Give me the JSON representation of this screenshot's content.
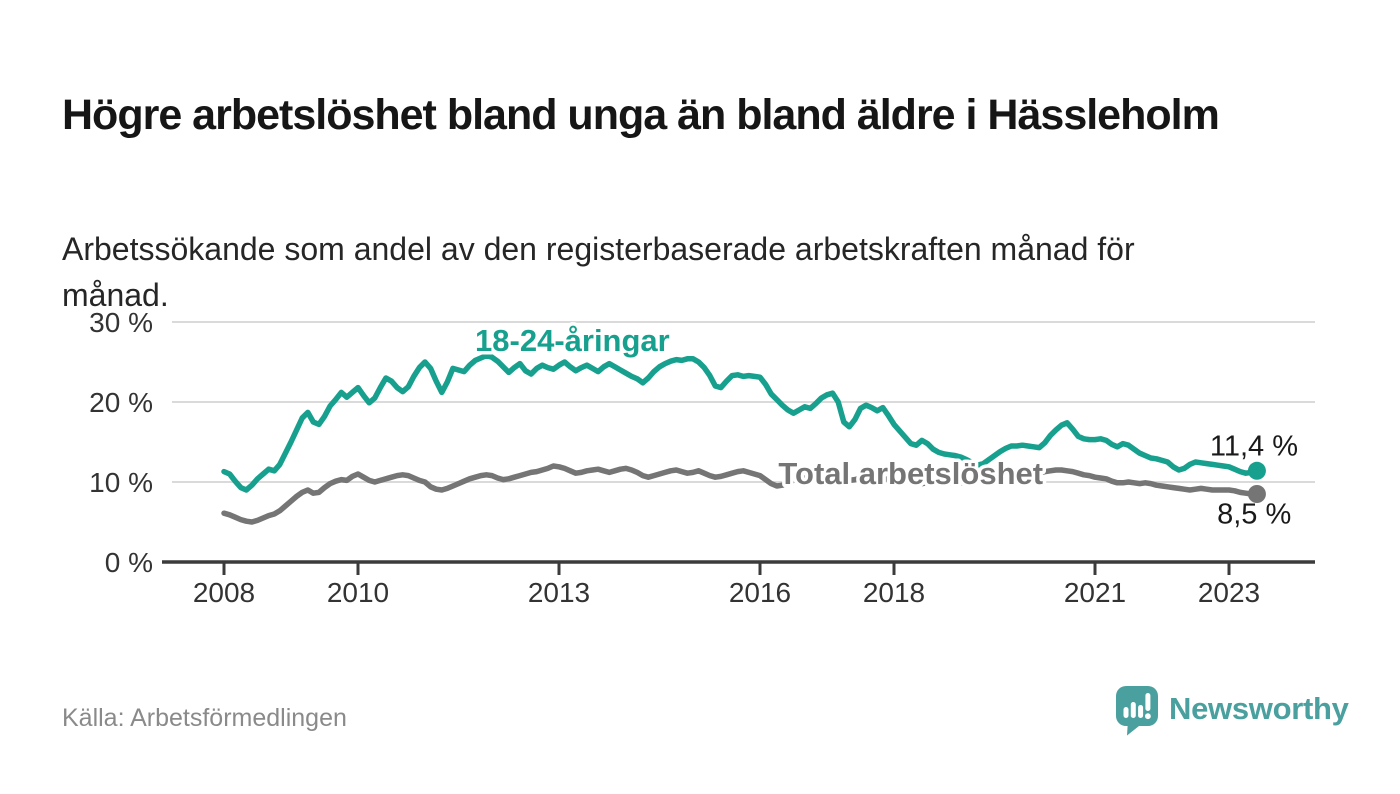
{
  "header": {
    "title": "Högre arbetslöshet bland unga än bland äldre i Hässleholm",
    "subtitle": "Arbetssökande som andel av den registerbaserade arbetskraften månad för månad."
  },
  "chart_data": {
    "type": "line",
    "unit": "%",
    "frequency": "monthly",
    "x_start_year": 2008,
    "x_end": "2023-06",
    "x_axis_ticks": [
      2008,
      2010,
      2013,
      2016,
      2018,
      2021,
      2023
    ],
    "y_axis_ticks": [
      0,
      10,
      20,
      30
    ],
    "y_tick_suffix": " %",
    "ylim": [
      0,
      32
    ],
    "grid": "horizontal-light",
    "legend": "inline-labels-on-lines",
    "series": [
      {
        "id": "young",
        "name": "18-24-åringar",
        "color": "#18a08e",
        "end_label": "11,4 %",
        "label_at": [
          2013.2,
          26.4
        ],
        "end_label_at": [
          2024.03,
          13.3
        ],
        "values": [
          11.3,
          11.0,
          10.1,
          9.3,
          9.0,
          9.6,
          10.4,
          11.0,
          11.6,
          11.4,
          12.2,
          13.6,
          15.0,
          16.5,
          18.0,
          18.7,
          17.5,
          17.2,
          18.2,
          19.5,
          20.3,
          21.2,
          20.6,
          21.2,
          21.8,
          20.8,
          19.9,
          20.5,
          21.8,
          23.0,
          22.6,
          21.8,
          21.3,
          21.9,
          23.2,
          24.3,
          25.0,
          24.2,
          22.6,
          21.2,
          22.5,
          24.2,
          24.0,
          23.8,
          24.6,
          25.2,
          25.5,
          25.8,
          25.6,
          25.1,
          24.4,
          23.7,
          24.3,
          24.8,
          23.9,
          23.5,
          24.2,
          24.6,
          24.3,
          24.1,
          24.6,
          25.0,
          24.4,
          23.9,
          24.3,
          24.6,
          24.2,
          23.8,
          24.4,
          24.8,
          24.4,
          24.0,
          23.6,
          23.2,
          22.9,
          22.4,
          23.0,
          23.8,
          24.4,
          24.8,
          25.1,
          25.3,
          25.2,
          25.4,
          25.4,
          25.0,
          24.3,
          23.3,
          22.0,
          21.8,
          22.6,
          23.3,
          23.4,
          23.2,
          23.3,
          23.2,
          23.1,
          22.2,
          21.0,
          20.3,
          19.6,
          19.0,
          18.6,
          19.0,
          19.4,
          19.2,
          19.8,
          20.5,
          20.9,
          21.1,
          20.0,
          17.5,
          16.9,
          17.8,
          19.2,
          19.6,
          19.3,
          18.9,
          19.3,
          18.3,
          17.2,
          16.4,
          15.6,
          14.8,
          14.6,
          15.2,
          14.8,
          14.1,
          13.7,
          13.5,
          13.4,
          13.3,
          13.1,
          12.8,
          12.4,
          12.1,
          12.3,
          12.8,
          13.3,
          13.8,
          14.2,
          14.5,
          14.5,
          14.6,
          14.5,
          14.4,
          14.3,
          14.9,
          15.8,
          16.5,
          17.1,
          17.4,
          16.6,
          15.7,
          15.4,
          15.3,
          15.3,
          15.4,
          15.2,
          14.7,
          14.4,
          14.8,
          14.6,
          14.1,
          13.6,
          13.3,
          13.0,
          12.9,
          12.7,
          12.5,
          11.9,
          11.5,
          11.7,
          12.2,
          12.5,
          12.4,
          12.3,
          12.2,
          12.1,
          12.0,
          11.9,
          11.6,
          11.3,
          11.1,
          11.2,
          11.4
        ]
      },
      {
        "id": "total",
        "name": "Total arbetslöshet",
        "color": "#757575",
        "end_label": "8,5 %",
        "label_at": [
          2018.25,
          9.75
        ],
        "end_label_at": [
          2023.93,
          4.8
        ],
        "values": [
          6.1,
          5.9,
          5.6,
          5.3,
          5.1,
          5.0,
          5.2,
          5.5,
          5.8,
          6.0,
          6.4,
          7.0,
          7.6,
          8.2,
          8.7,
          9.0,
          8.6,
          8.7,
          9.3,
          9.8,
          10.1,
          10.3,
          10.2,
          10.7,
          11.0,
          10.6,
          10.2,
          10.0,
          10.2,
          10.4,
          10.6,
          10.8,
          10.9,
          10.8,
          10.5,
          10.2,
          10.0,
          9.4,
          9.1,
          9.0,
          9.2,
          9.5,
          9.8,
          10.1,
          10.4,
          10.6,
          10.8,
          10.9,
          10.8,
          10.5,
          10.3,
          10.4,
          10.6,
          10.8,
          11.0,
          11.2,
          11.3,
          11.5,
          11.7,
          12.0,
          11.9,
          11.7,
          11.4,
          11.1,
          11.2,
          11.4,
          11.5,
          11.6,
          11.4,
          11.2,
          11.4,
          11.6,
          11.7,
          11.5,
          11.2,
          10.8,
          10.6,
          10.8,
          11.0,
          11.2,
          11.4,
          11.5,
          11.3,
          11.1,
          11.2,
          11.4,
          11.1,
          10.8,
          10.6,
          10.7,
          10.9,
          11.1,
          11.3,
          11.4,
          11.2,
          11.0,
          10.8,
          10.3,
          9.8,
          9.5,
          9.6,
          9.9,
          10.2,
          10.4,
          10.5,
          10.4,
          10.3,
          10.4,
          10.5,
          10.6,
          10.5,
          10.3,
          10.2,
          10.3,
          10.5,
          10.6,
          10.5,
          10.4,
          10.3,
          10.4,
          10.5,
          10.4,
          10.2,
          10.0,
          9.9,
          9.8,
          9.9,
          10.0,
          10.1,
          10.0,
          9.9,
          9.8,
          9.9,
          10.0,
          10.1,
          10.2,
          10.3,
          10.4,
          10.6,
          10.8,
          10.9,
          11.0,
          11.1,
          11.2,
          11.2,
          11.1,
          11.1,
          11.3,
          11.4,
          11.5,
          11.5,
          11.4,
          11.3,
          11.1,
          10.9,
          10.8,
          10.6,
          10.5,
          10.4,
          10.1,
          9.9,
          9.9,
          10.0,
          9.9,
          9.8,
          9.9,
          9.8,
          9.6,
          9.5,
          9.4,
          9.3,
          9.2,
          9.1,
          9.0,
          9.1,
          9.2,
          9.1,
          9.0,
          9.0,
          9.0,
          9.0,
          8.9,
          8.7,
          8.6,
          8.5,
          8.5
        ]
      }
    ]
  },
  "footer": {
    "source": "Källa: Arbetsförmedlingen",
    "brand": "Newsworthy"
  },
  "colors": {
    "accent_teal": "#18a08e",
    "line_gray": "#757575",
    "brand_teal": "#4aa09e",
    "axis": "#3b3b3b",
    "gridline": "#dadada",
    "value_label": "#1a1a1a"
  }
}
